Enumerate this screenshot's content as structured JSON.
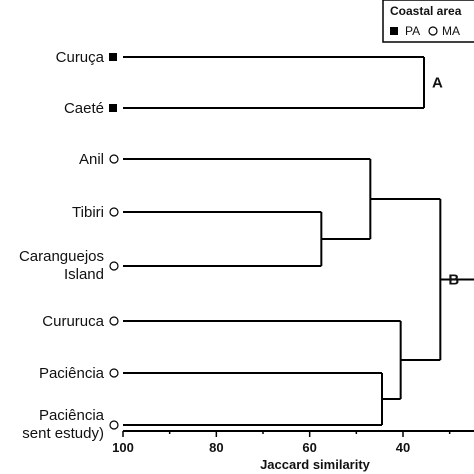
{
  "chart_data": {
    "type": "dendrogram",
    "xlabel": "Jaccard similarity",
    "xlim": [
      100,
      40
    ],
    "xticks": [
      100,
      80,
      60,
      40
    ],
    "legend": {
      "title": "Coastal area",
      "items": [
        {
          "marker": "square",
          "label": "PA"
        },
        {
          "marker": "circle",
          "label": "MA"
        }
      ],
      "placement": "top-right"
    },
    "leaves": [
      {
        "lines": [
          "Curuça"
        ],
        "marker": "square"
      },
      {
        "lines": [
          "Caeté"
        ],
        "marker": "square"
      },
      {
        "lines": [
          "Anil"
        ],
        "marker": "circle"
      },
      {
        "lines": [
          "Tibiri"
        ],
        "marker": "circle"
      },
      {
        "lines": [
          "Caranguejos",
          "Island"
        ],
        "marker": "circle"
      },
      {
        "lines": [
          "Cururuca"
        ],
        "marker": "circle"
      },
      {
        "lines": [
          "Paciência"
        ],
        "marker": "circle"
      },
      {
        "lines": [
          "Paciência",
          "sent estudy)"
        ],
        "marker": "circle"
      }
    ],
    "merges": [
      {
        "children": [
          "L0",
          "L1"
        ],
        "similarity": 35.5,
        "label": "A"
      },
      {
        "children": [
          "L3",
          "L4"
        ],
        "similarity": 57.5
      },
      {
        "children": [
          "L2",
          "M1"
        ],
        "similarity": 47.0
      },
      {
        "children": [
          "L6",
          "L7"
        ],
        "similarity": 44.5
      },
      {
        "children": [
          "L5",
          "M3"
        ],
        "similarity": 40.5
      },
      {
        "children": [
          "M2",
          "M4"
        ],
        "similarity": 32.0,
        "label": "B"
      }
    ]
  }
}
